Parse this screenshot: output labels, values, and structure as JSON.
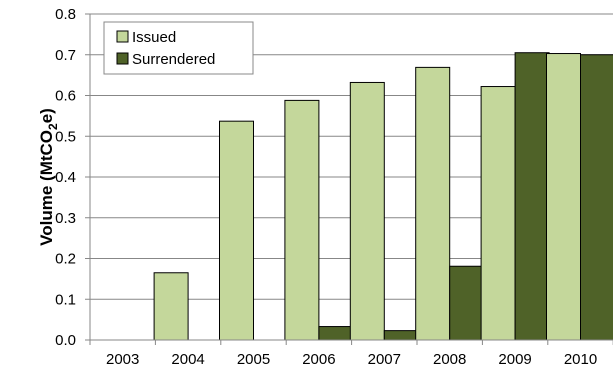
{
  "chart_data": {
    "type": "bar",
    "categories": [
      "2003",
      "2004",
      "2005",
      "2006",
      "2007",
      "2008",
      "2009",
      "2010"
    ],
    "series": [
      {
        "name": "Issued",
        "color": "#c4d79b",
        "values": [
          0,
          0.165,
          0.537,
          0.588,
          0.632,
          0.669,
          0.622,
          0.703
        ]
      },
      {
        "name": "Surrendered",
        "color": "#4f6228",
        "values": [
          0,
          0,
          0,
          0.033,
          0.023,
          0.181,
          0.705,
          0.7
        ]
      }
    ],
    "title": "",
    "xlabel": "",
    "ylabel_prefix": "Volume (MtCO",
    "ylabel_sub": "2",
    "ylabel_suffix": "e)",
    "ylim": [
      0,
      0.8
    ],
    "yticks": [
      "0.0",
      "0.1",
      "0.2",
      "0.3",
      "0.4",
      "0.5",
      "0.6",
      "0.7",
      "0.8"
    ],
    "grid": true,
    "legend_position": "top-left"
  }
}
